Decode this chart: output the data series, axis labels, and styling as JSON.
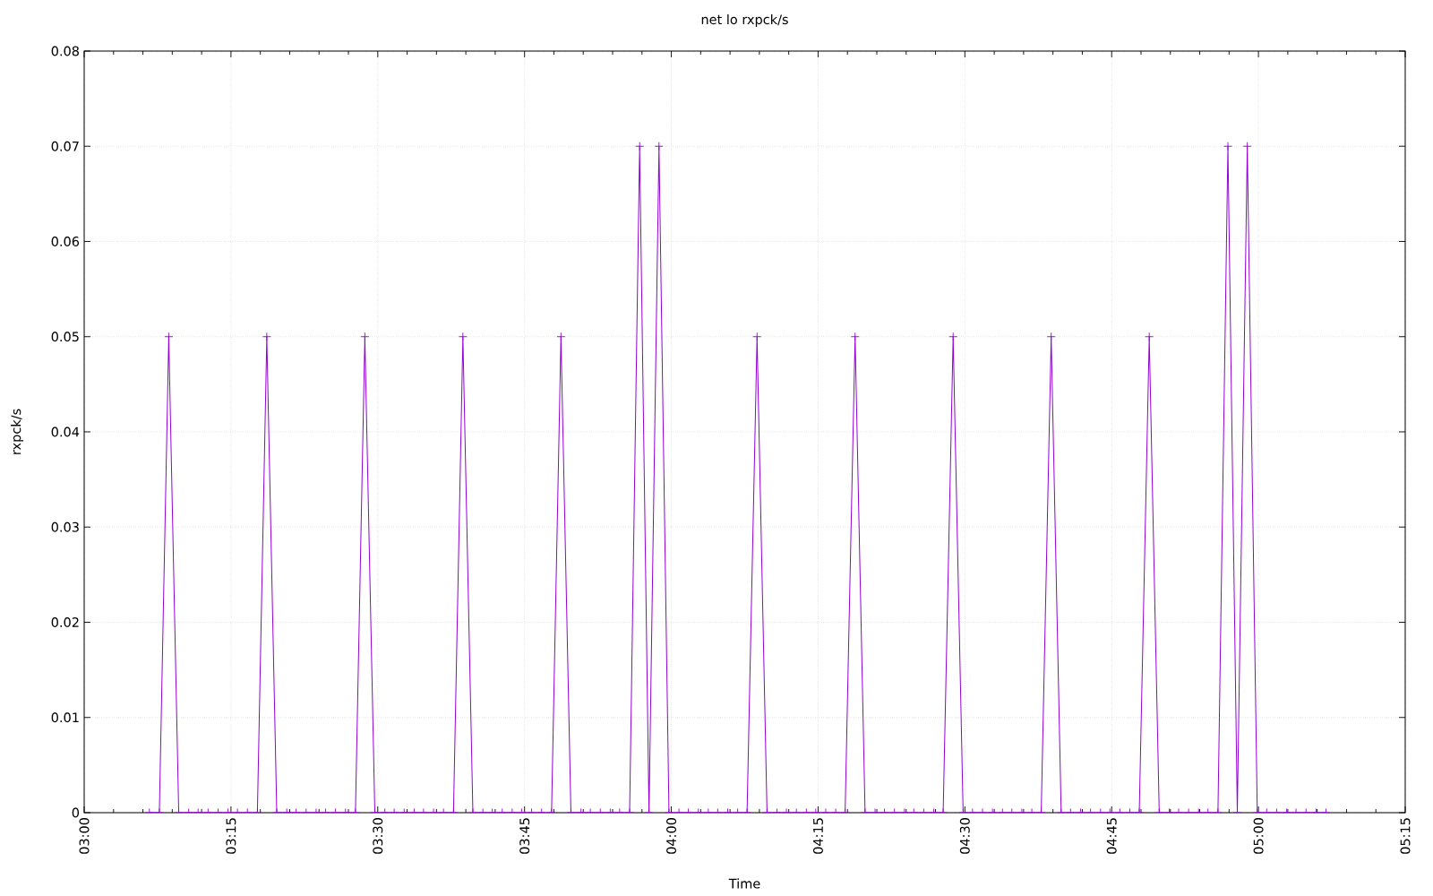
{
  "chart_data": {
    "type": "line",
    "title": "net lo rxpck/s",
    "xlabel": "Time",
    "ylabel": "rxpck/s",
    "x": [
      3.111,
      3.128,
      3.144,
      3.161,
      3.178,
      3.194,
      3.211,
      3.228,
      3.245,
      3.261,
      3.278,
      3.295,
      3.311,
      3.328,
      3.345,
      3.361,
      3.378,
      3.395,
      3.411,
      3.428,
      3.445,
      3.462,
      3.478,
      3.495,
      3.512,
      3.528,
      3.545,
      3.562,
      3.578,
      3.595,
      3.612,
      3.629,
      3.645,
      3.662,
      3.679,
      3.695,
      3.712,
      3.729,
      3.745,
      3.762,
      3.779,
      3.796,
      3.812,
      3.829,
      3.846,
      3.862,
      3.879,
      3.896,
      3.912,
      3.929,
      3.946,
      3.962,
      3.979,
      3.996,
      4.013,
      4.029,
      4.046,
      4.063,
      4.079,
      4.096,
      4.113,
      4.129,
      4.146,
      4.163,
      4.18,
      4.196,
      4.213,
      4.23,
      4.246,
      4.263,
      4.28,
      4.296,
      4.313,
      4.33,
      4.347,
      4.363,
      4.38,
      4.397,
      4.413,
      4.43,
      4.447,
      4.463,
      4.48,
      4.497,
      4.513,
      4.53,
      4.547,
      4.564,
      4.58,
      4.597,
      4.614,
      4.63,
      4.647,
      4.664,
      4.68,
      4.697,
      4.714,
      4.731,
      4.747,
      4.764,
      4.781,
      4.797,
      4.814,
      4.831,
      4.848,
      4.864,
      4.881,
      4.898,
      4.914,
      4.931,
      4.948,
      4.964,
      4.981,
      4.998,
      5.014,
      5.031,
      5.048,
      5.064,
      5.081,
      5.098,
      5.115
    ],
    "series": [
      {
        "color": "#9400d3",
        "values": [
          0,
          0,
          0.05,
          0,
          0,
          0,
          0,
          0,
          0,
          0,
          0,
          0,
          0.05,
          0,
          0,
          0,
          0,
          0,
          0,
          0,
          0,
          0,
          0.05,
          0,
          0,
          0,
          0,
          0,
          0,
          0,
          0,
          0,
          0.05,
          0,
          0,
          0,
          0,
          0,
          0,
          0,
          0,
          0,
          0.05,
          0,
          0,
          0,
          0,
          0,
          0,
          0,
          0.07,
          0,
          0.07,
          0,
          0,
          0,
          0,
          0,
          0,
          0,
          0,
          0,
          0.05,
          0,
          0,
          0,
          0,
          0,
          0,
          0,
          0,
          0,
          0.05,
          0,
          0,
          0,
          0,
          0,
          0,
          0,
          0,
          0,
          0.05,
          0,
          0,
          0,
          0,
          0,
          0,
          0,
          0,
          0,
          0.05,
          0,
          0,
          0,
          0,
          0,
          0,
          0,
          0,
          0,
          0.05,
          0,
          0,
          0,
          0,
          0,
          0,
          0,
          0.07,
          0,
          0.07,
          0,
          0,
          0,
          0,
          0,
          0,
          0,
          0
        ]
      }
    ],
    "xlim": [
      3,
      5.25
    ],
    "xticks": [
      {
        "value": 3,
        "label": "03:00"
      },
      {
        "value": 3.25,
        "label": "03:15"
      },
      {
        "value": 3.5,
        "label": "03:30"
      },
      {
        "value": 3.75,
        "label": "03:45"
      },
      {
        "value": 4,
        "label": "04:00"
      },
      {
        "value": 4.25,
        "label": "04:15"
      },
      {
        "value": 4.5,
        "label": "04:30"
      },
      {
        "value": 4.75,
        "label": "04:45"
      },
      {
        "value": 5,
        "label": "05:00"
      },
      {
        "value": 5.25,
        "label": "05:15"
      }
    ],
    "ylim": [
      0,
      0.08
    ],
    "yticks": [
      0,
      0.01,
      0.02,
      0.03,
      0.04,
      0.05,
      0.06,
      0.07,
      0.08
    ],
    "grid": true,
    "marker": "cross",
    "line_style": "solid"
  }
}
